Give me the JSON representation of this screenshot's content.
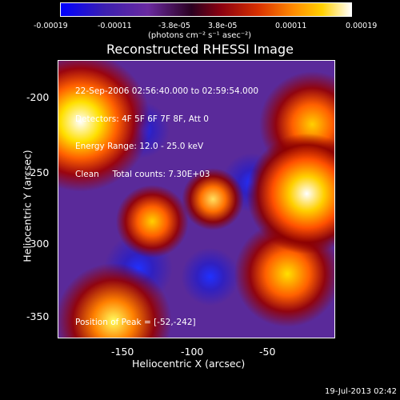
{
  "colorbar": {
    "ticks": [
      "-0.00019",
      "-0.00011",
      "-3.8e-05",
      "3.8e-05",
      "0.00011",
      "0.00019"
    ],
    "unit": "(photons cm⁻² s⁻¹ asec⁻²)"
  },
  "title": "Reconstructed RHESSI Image",
  "info": {
    "time_range": "22-Sep-2006 02:56:40.000 to 02:59:54.000",
    "detectors": "Detectors: 4F 5F 6F 7F 8F, Att 0",
    "energy": "Energy Range: 12.0 - 25.0 keV",
    "clean": "Clean     Total counts: 7.30E+03"
  },
  "peak": "Position of Peak = [-52,-242]",
  "axes": {
    "xlabel": "Heliocentric X (arcsec)",
    "ylabel": "Heliocentric Y (arcsec)",
    "xticks": [
      "-150",
      "-100",
      "-50"
    ],
    "yticks": [
      "-200",
      "-250",
      "-300",
      "-350"
    ]
  },
  "timestamp": "19-Jul-2013 02:42"
}
